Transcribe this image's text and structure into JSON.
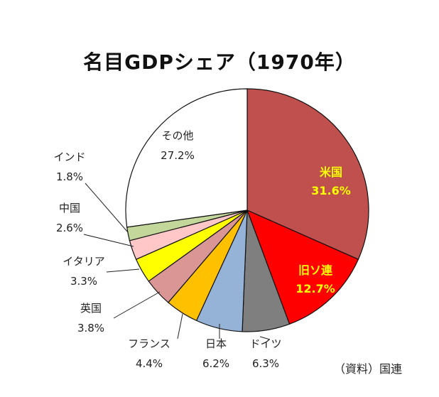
{
  "chart_data": {
    "type": "pie",
    "title": "名目GDPシェア（1970年）",
    "source": "（資料）国連",
    "unit": "%",
    "slices": [
      {
        "label": "米国",
        "value": 31.6,
        "value_text": "31.6%",
        "color": "#c0504d"
      },
      {
        "label": "旧ソ連",
        "value": 12.7,
        "value_text": "12.7%",
        "color": "#ff0000"
      },
      {
        "label": "ドイツ",
        "value": 6.3,
        "value_text": "6.3%",
        "color": "#7f7f7f"
      },
      {
        "label": "日本",
        "value": 6.2,
        "value_text": "6.2%",
        "color": "#95b3d7"
      },
      {
        "label": "フランス",
        "value": 4.4,
        "value_text": "4.4%",
        "color": "#ffc000"
      },
      {
        "label": "英国",
        "value": 3.8,
        "value_text": "3.8%",
        "color": "#da9694"
      },
      {
        "label": "イタリア",
        "value": 3.3,
        "value_text": "3.3%",
        "color": "#ffff00"
      },
      {
        "label": "中国",
        "value": 2.6,
        "value_text": "2.6%",
        "color": "#ffc7c7"
      },
      {
        "label": "インド",
        "value": 1.8,
        "value_text": "1.8%",
        "color": "#c4d79b"
      },
      {
        "label": "その他",
        "value": 27.2,
        "value_text": "27.2%",
        "color": "#ffffff"
      }
    ]
  }
}
